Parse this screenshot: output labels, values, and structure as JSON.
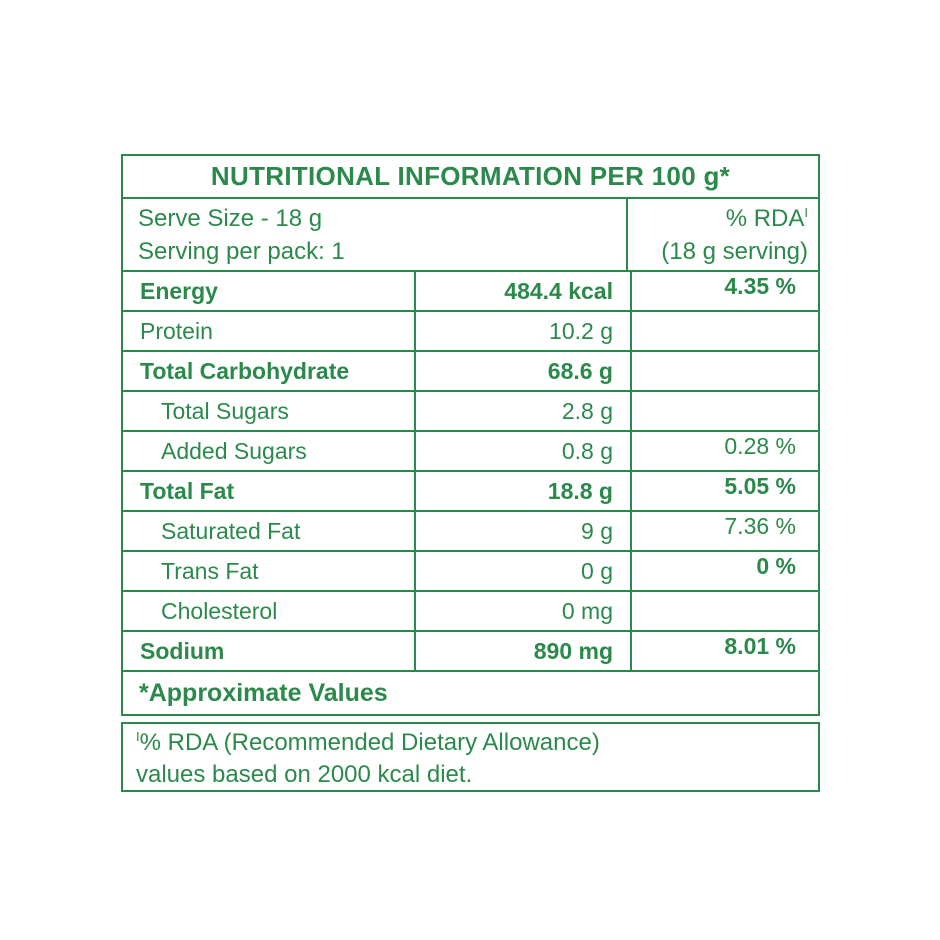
{
  "table": {
    "title": "NUTRITIONAL INFORMATION PER 100 g*",
    "serve": {
      "line1": "Serve Size - 18 g",
      "line2": "Serving per pack: 1"
    },
    "rda_header": {
      "text": "% RDA",
      "marker": "I",
      "line2": "(18 g serving)"
    },
    "rows": [
      {
        "label": "Energy",
        "amount": "484.4 kcal",
        "rda": "4.35 %",
        "style": "group",
        "rda_bold": true
      },
      {
        "label": "Protein",
        "amount": "10.2 g",
        "rda": "",
        "style": "plain",
        "rda_bold": false
      },
      {
        "label": "Total Carbohydrate",
        "amount": "68.6 g",
        "rda": "",
        "style": "group",
        "rda_bold": false
      },
      {
        "label": "Total Sugars",
        "amount": "2.8 g",
        "rda": "",
        "style": "sub",
        "rda_bold": false
      },
      {
        "label": "Added Sugars",
        "amount": "0.8 g",
        "rda": "0.28 %",
        "style": "sub",
        "rda_bold": false
      },
      {
        "label": "Total Fat",
        "amount": "18.8 g",
        "rda": "5.05 %",
        "style": "group",
        "rda_bold": true
      },
      {
        "label": "Saturated Fat",
        "amount": "9 g",
        "rda": "7.36 %",
        "style": "sub",
        "rda_bold": false
      },
      {
        "label": "Trans Fat",
        "amount": "0 g",
        "rda": "0 %",
        "style": "sub",
        "rda_bold": true
      },
      {
        "label": "Cholesterol",
        "amount": "0 mg",
        "rda": "",
        "style": "sub",
        "rda_bold": false
      },
      {
        "label": "Sodium",
        "amount": "890 mg",
        "rda": "8.01 %",
        "style": "group",
        "rda_bold": true
      }
    ],
    "footer": "*Approximate Values"
  },
  "footnote": {
    "marker": "I",
    "line1": "% RDA (Recommended Dietary Allowance)",
    "line2": "values based on 2000 kcal diet."
  },
  "colors": {
    "green": "#2b8a4b",
    "background": "#ffffff"
  }
}
